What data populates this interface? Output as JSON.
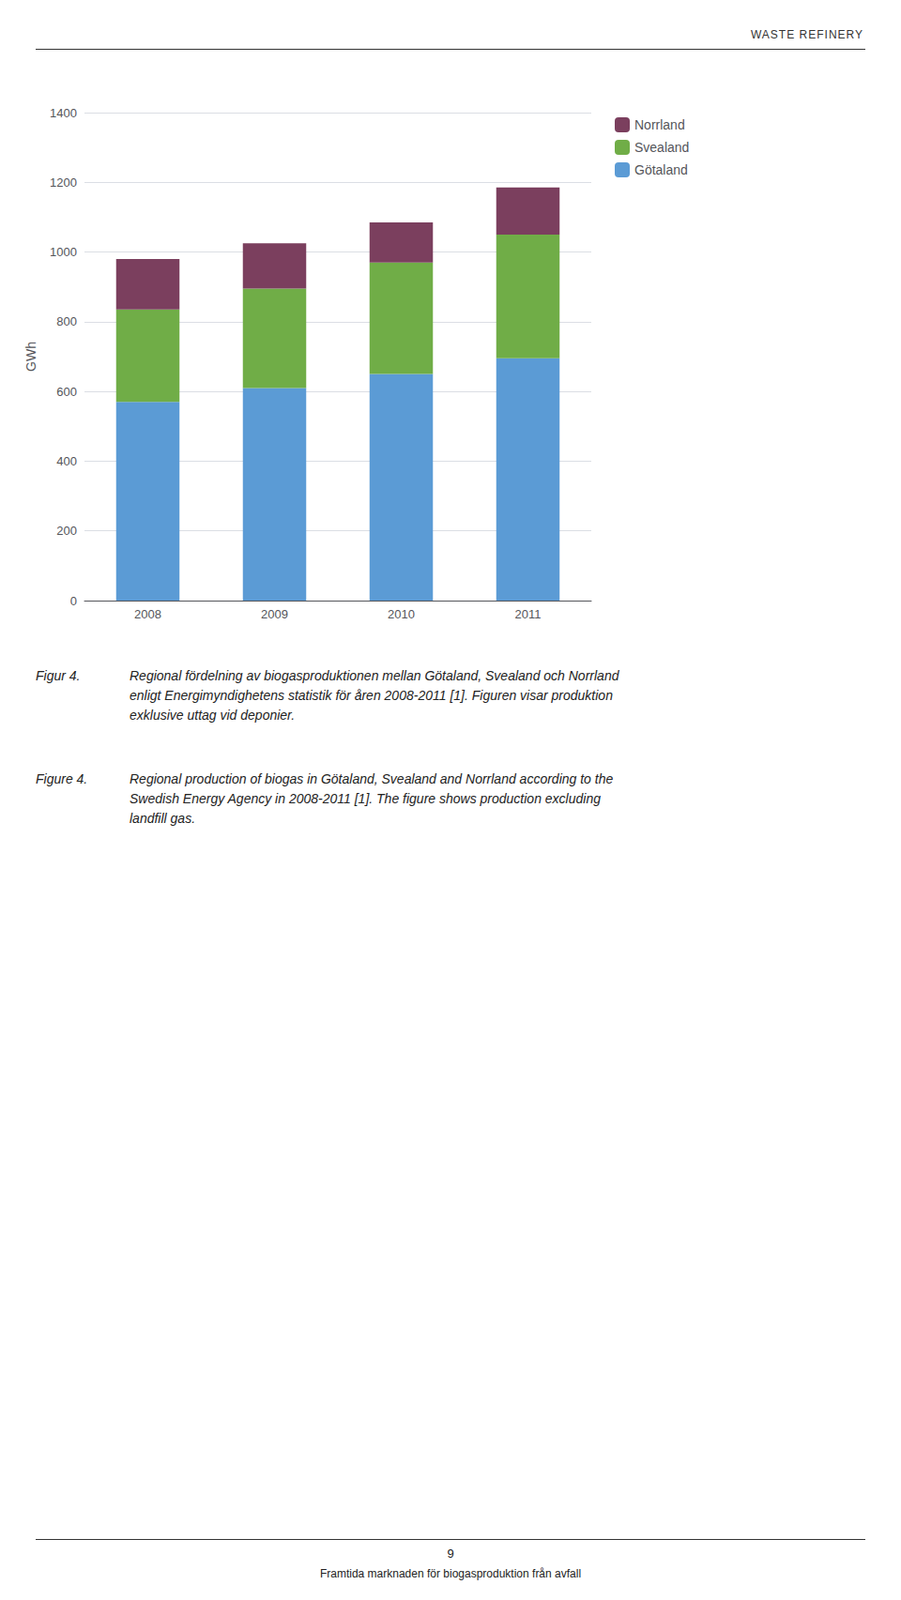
{
  "chart_data": {
    "type": "bar",
    "stacked": true,
    "categories": [
      "2008",
      "2009",
      "2010",
      "2011"
    ],
    "series": [
      {
        "name": "Götaland",
        "color": "#5B9BD5",
        "values": [
          570,
          610,
          650,
          695
        ]
      },
      {
        "name": "Svealand",
        "color": "#70AD47",
        "values": [
          265,
          285,
          320,
          355
        ]
      },
      {
        "name": "Norrland",
        "color": "#7B3F5E",
        "values": [
          145,
          130,
          115,
          135
        ]
      }
    ],
    "ylabel": "GWh",
    "ylim": [
      0,
      1400
    ],
    "yticks": [
      0,
      200,
      400,
      600,
      800,
      1000,
      1200,
      1400
    ],
    "grid": true,
    "legend": "right",
    "annotations": [
      "WASTE REFINERY",
      "Figur 4.",
      "Regional fördelning av biogasproduktionen mellan Götaland, Svealand och Norrland\nenligt Energimyndighetens statistik för åren 2008-2011 [1]. Figuren visar produktion\nexklusive uttag vid deponier.",
      "Figure 4.",
      "Regional production of biogas in Götaland, Svealand and Norrland according to the\nSwedish Energy Agency in 2008-2011 [1]. The figure shows production excluding\nlandfill gas.",
      "9",
      "Framtida marknaden för biogasproduktion från avfall"
    ]
  }
}
